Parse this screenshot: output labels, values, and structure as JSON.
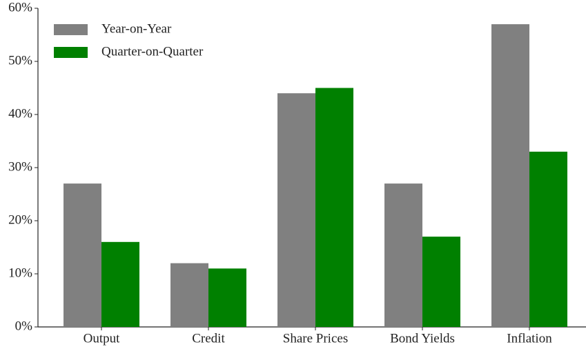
{
  "chart_data": {
    "type": "bar",
    "categories": [
      "Output",
      "Credit",
      "Share Prices",
      "Bond Yields",
      "Inflation"
    ],
    "series": [
      {
        "name": "Year-on-Year",
        "color": "#808080",
        "values": [
          27,
          12,
          44,
          27,
          57
        ]
      },
      {
        "name": "Quarter-on-Quarter",
        "color": "#008000",
        "values": [
          16,
          11,
          45,
          17,
          33
        ]
      }
    ],
    "ylim": [
      0,
      60
    ],
    "yticks": [
      {
        "value": 0,
        "label": "0%"
      },
      {
        "value": 10,
        "label": "10%"
      },
      {
        "value": 20,
        "label": "20%"
      },
      {
        "value": 30,
        "label": "30%"
      },
      {
        "value": 40,
        "label": "40%"
      },
      {
        "value": 50,
        "label": "50%"
      },
      {
        "value": 60,
        "label": "60%"
      }
    ],
    "grid": false,
    "legend": "upper-left"
  }
}
